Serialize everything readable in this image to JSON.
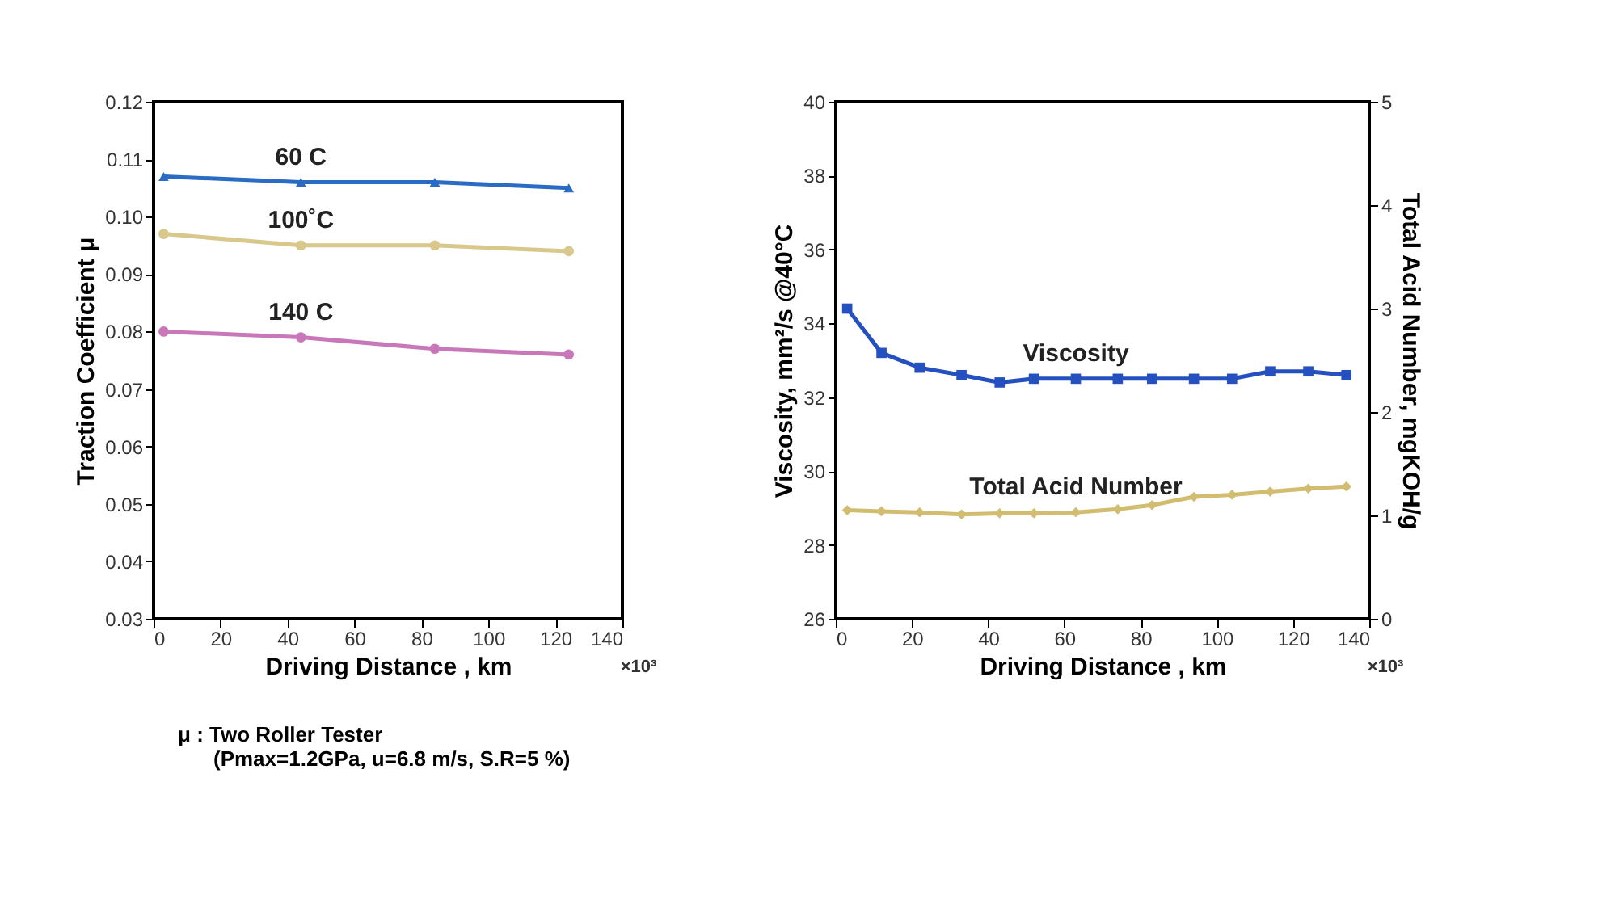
{
  "chart_data": [
    {
      "type": "line",
      "ylabel": "Traction Coefficient  μ",
      "xlabel": "Driving Distance , km",
      "xlim": [
        0,
        140
      ],
      "xticks": [
        0,
        20,
        40,
        60,
        80,
        100,
        120,
        140
      ],
      "ylim": [
        0.03,
        0.12
      ],
      "yticks": [
        0.03,
        0.04,
        0.05,
        0.06,
        0.07,
        0.08,
        0.09,
        {
          "value": 0.1,
          "label": "0.10"
        },
        0.11,
        0.12
      ],
      "annotations": [
        "×10³",
        "μ : Two Roller Tester",
        "(Pmax=1.2GPa, u=6.8 m/s, S.R=5 %)"
      ],
      "x": [
        3,
        44,
        84,
        124
      ],
      "series": [
        {
          "name": "60 C",
          "color": "#2a6cc4",
          "marker": "triangle",
          "values": [
            0.107,
            0.106,
            0.106,
            0.105
          ]
        },
        {
          "name": "100˚C",
          "color": "#d8c88c",
          "marker": "circle",
          "values": [
            0.097,
            0.095,
            0.095,
            0.094
          ]
        },
        {
          "name": "140 C",
          "color": "#c878b8",
          "marker": "circle",
          "values": [
            0.08,
            0.079,
            0.077,
            0.076
          ]
        }
      ]
    },
    {
      "type": "line",
      "ylabel": "Viscosity, mm²/s @40°C",
      "y2label": "Total Acid Number, mgKOH/g",
      "xlabel": "Driving Distance , km",
      "xlim": [
        0,
        140
      ],
      "xticks": [
        0,
        20,
        40,
        60,
        80,
        100,
        120,
        140
      ],
      "ylim": [
        26,
        40
      ],
      "yticks": [
        26,
        28,
        30,
        32,
        34,
        36,
        38,
        40
      ],
      "y2lim": [
        0,
        5
      ],
      "y2ticks": [
        0,
        1,
        2,
        3,
        4,
        5
      ],
      "annotations": [
        "×10³"
      ],
      "x": [
        3,
        12,
        22,
        33,
        43,
        52,
        63,
        74,
        83,
        94,
        104,
        114,
        124,
        134
      ],
      "series": [
        {
          "name": "Viscosity",
          "color": "#2450c0",
          "marker": "square",
          "values": [
            34.4,
            33.2,
            32.8,
            32.6,
            32.4,
            32.5,
            32.5,
            32.5,
            32.5,
            32.5,
            32.5,
            32.7,
            32.7,
            32.6
          ]
        },
        {
          "name": "Total Acid Number",
          "color": "#d2bc70",
          "marker": "diamond",
          "axis": "y2",
          "values": [
            1.05,
            1.04,
            1.03,
            1.01,
            1.02,
            1.02,
            1.03,
            1.06,
            1.1,
            1.18,
            1.2,
            1.23,
            1.26,
            1.28
          ]
        }
      ]
    }
  ]
}
